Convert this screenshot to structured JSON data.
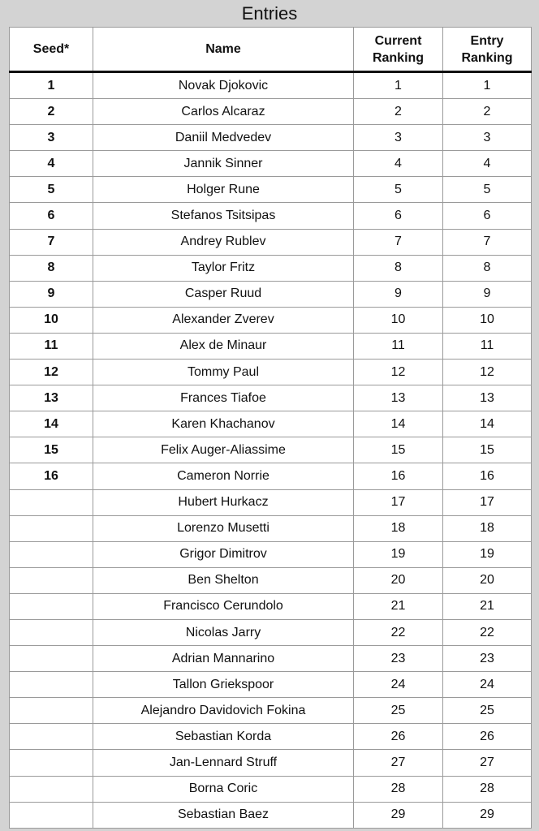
{
  "title": "Entries",
  "columns": {
    "seed": "Seed*",
    "name": "Name",
    "current_ranking": "Current Ranking",
    "entry_ranking": "Entry Ranking"
  },
  "rows": [
    {
      "seed": "1",
      "name": "Novak Djokovic",
      "current": "1",
      "entry": "1"
    },
    {
      "seed": "2",
      "name": "Carlos Alcaraz",
      "current": "2",
      "entry": "2"
    },
    {
      "seed": "3",
      "name": "Daniil Medvedev",
      "current": "3",
      "entry": "3"
    },
    {
      "seed": "4",
      "name": "Jannik Sinner",
      "current": "4",
      "entry": "4"
    },
    {
      "seed": "5",
      "name": "Holger Rune",
      "current": "5",
      "entry": "5"
    },
    {
      "seed": "6",
      "name": "Stefanos Tsitsipas",
      "current": "6",
      "entry": "6"
    },
    {
      "seed": "7",
      "name": "Andrey Rublev",
      "current": "7",
      "entry": "7"
    },
    {
      "seed": "8",
      "name": "Taylor Fritz",
      "current": "8",
      "entry": "8"
    },
    {
      "seed": "9",
      "name": "Casper Ruud",
      "current": "9",
      "entry": "9"
    },
    {
      "seed": "10",
      "name": "Alexander Zverev",
      "current": "10",
      "entry": "10"
    },
    {
      "seed": "11",
      "name": "Alex de Minaur",
      "current": "11",
      "entry": "11"
    },
    {
      "seed": "12",
      "name": "Tommy Paul",
      "current": "12",
      "entry": "12"
    },
    {
      "seed": "13",
      "name": "Frances Tiafoe",
      "current": "13",
      "entry": "13"
    },
    {
      "seed": "14",
      "name": "Karen Khachanov",
      "current": "14",
      "entry": "14"
    },
    {
      "seed": "15",
      "name": "Felix Auger-Aliassime",
      "current": "15",
      "entry": "15"
    },
    {
      "seed": "16",
      "name": "Cameron Norrie",
      "current": "16",
      "entry": "16"
    },
    {
      "seed": "",
      "name": "Hubert Hurkacz",
      "current": "17",
      "entry": "17"
    },
    {
      "seed": "",
      "name": "Lorenzo Musetti",
      "current": "18",
      "entry": "18"
    },
    {
      "seed": "",
      "name": "Grigor Dimitrov",
      "current": "19",
      "entry": "19"
    },
    {
      "seed": "",
      "name": "Ben Shelton",
      "current": "20",
      "entry": "20"
    },
    {
      "seed": "",
      "name": "Francisco Cerundolo",
      "current": "21",
      "entry": "21"
    },
    {
      "seed": "",
      "name": "Nicolas Jarry",
      "current": "22",
      "entry": "22"
    },
    {
      "seed": "",
      "name": "Adrian Mannarino",
      "current": "23",
      "entry": "23"
    },
    {
      "seed": "",
      "name": "Tallon Griekspoor",
      "current": "24",
      "entry": "24"
    },
    {
      "seed": "",
      "name": "Alejandro Davidovich Fokina",
      "current": "25",
      "entry": "25"
    },
    {
      "seed": "",
      "name": "Sebastian Korda",
      "current": "26",
      "entry": "26"
    },
    {
      "seed": "",
      "name": "Jan-Lennard Struff",
      "current": "27",
      "entry": "27"
    },
    {
      "seed": "",
      "name": "Borna Coric",
      "current": "28",
      "entry": "28"
    },
    {
      "seed": "",
      "name": "Sebastian Baez",
      "current": "29",
      "entry": "29"
    }
  ]
}
